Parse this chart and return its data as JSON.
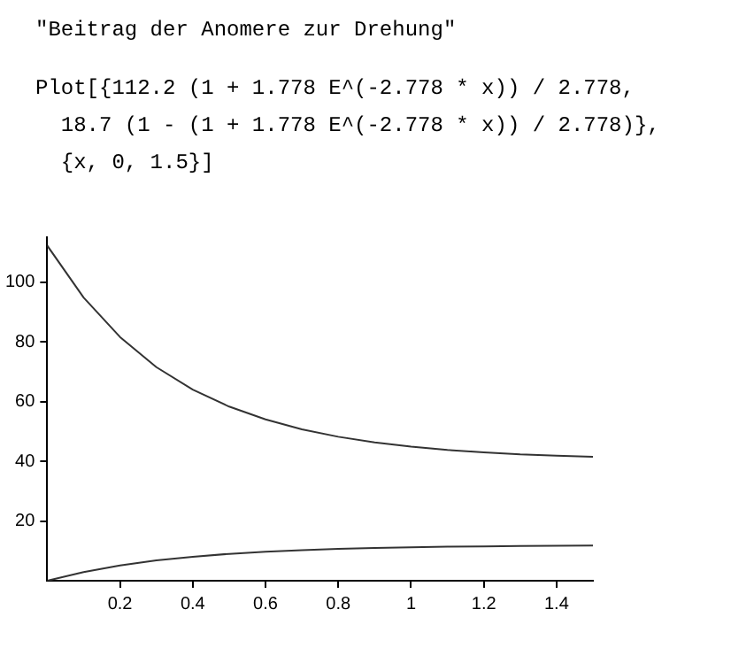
{
  "chart_data": {
    "type": "line",
    "title": "\"Beitrag der Anomere zur Drehung\"",
    "annotations": [
      "Plot[{112.2 (1 + 1.778 E^(-2.778 * x)) / 2.778,",
      "  18.7 (1 - (1 + 1.778 E^(-2.778 * x)) / 2.778)},",
      "  {x, 0, 1.5}]"
    ],
    "x": [
      0,
      0.1,
      0.2,
      0.3,
      0.4,
      0.5,
      0.6,
      0.7,
      0.8,
      0.9,
      1.0,
      1.1,
      1.2,
      1.3,
      1.4,
      1.5
    ],
    "series": [
      {
        "color": "#333333",
        "values": [
          112.2,
          94.8,
          81.6,
          71.5,
          64.0,
          58.3,
          54.0,
          50.7,
          48.2,
          46.3,
          44.9,
          43.8,
          43.0,
          42.3,
          41.9,
          41.5
        ]
      },
      {
        "color": "#333333",
        "values": [
          0,
          2.9,
          5.1,
          6.8,
          8.0,
          9.0,
          9.7,
          10.2,
          10.7,
          11.0,
          11.2,
          11.4,
          11.5,
          11.6,
          11.7,
          11.8
        ]
      }
    ],
    "xlim": [
      0,
      1.5
    ],
    "xticks": [
      0.2,
      0.4,
      0.6,
      0.8,
      1,
      1.2,
      1.4
    ],
    "ylim": [
      0,
      115
    ],
    "yticks": [
      20,
      40,
      60,
      80,
      100
    ],
    "grid": false,
    "legend": false,
    "marker": "none",
    "line_style": "solid"
  }
}
